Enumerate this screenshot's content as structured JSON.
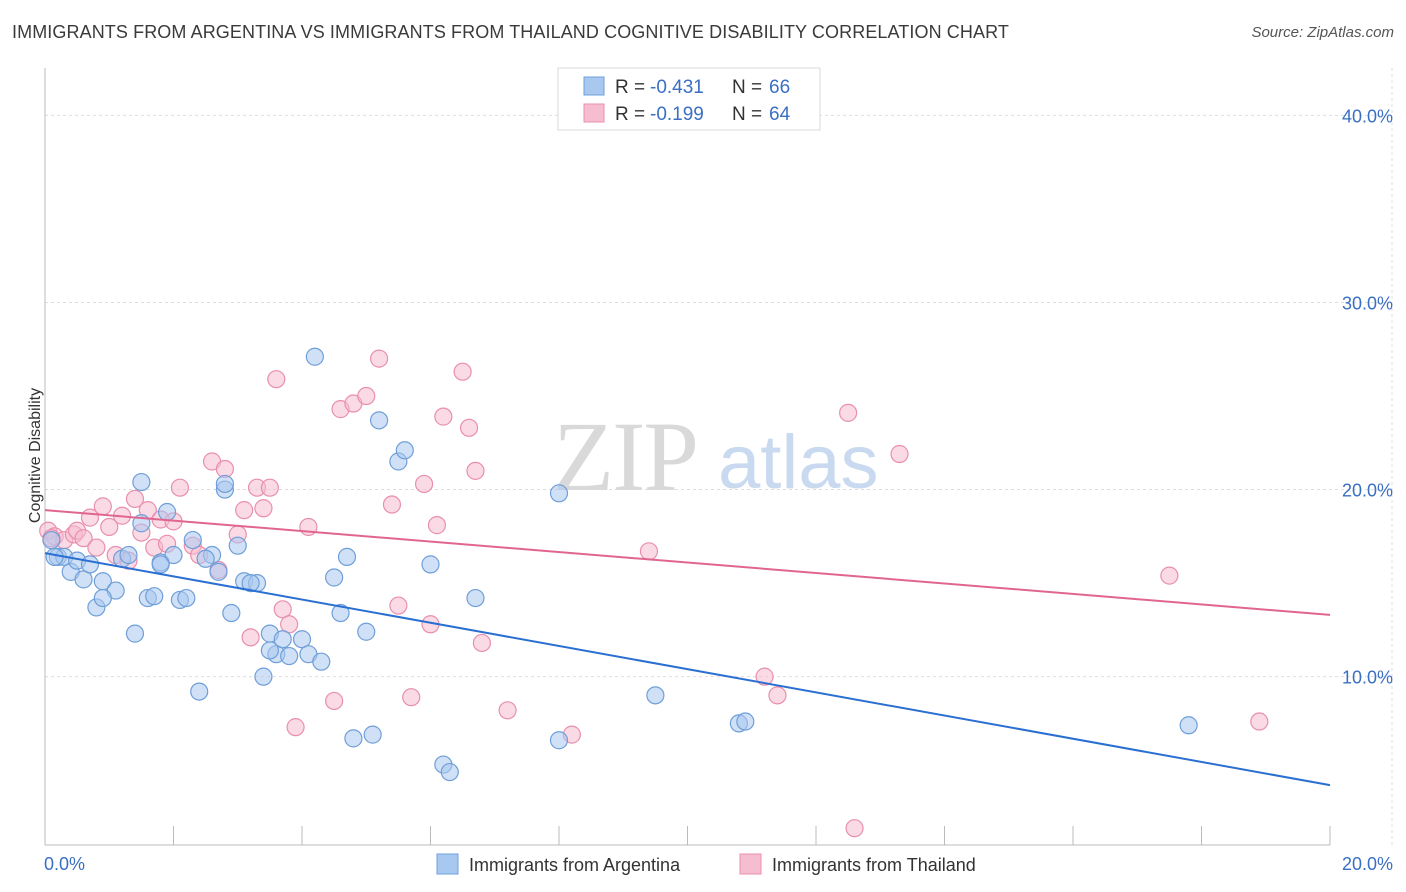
{
  "title": "IMMIGRANTS FROM ARGENTINA VS IMMIGRANTS FROM THAILAND COGNITIVE DISABILITY CORRELATION CHART",
  "source": "Source: ZipAtlas.com",
  "watermark": {
    "zip": "ZIP",
    "atlas": "atlas"
  },
  "colors": {
    "argentina_fill": "#a9c8f0",
    "argentina_stroke": "#6f9fd8",
    "argentina_line": "#2a6fd1",
    "thailand_fill": "#f6bcd0",
    "thailand_stroke": "#e98fae",
    "thailand_line": "#e0668f",
    "axis_label": "#3a6fc4",
    "grid": "#dddddd"
  },
  "legend": {
    "r_label": "R =",
    "n_label": "N =",
    "rows": [
      {
        "r": "-0.431",
        "n": "66"
      },
      {
        "r": "-0.199",
        "n": "64"
      }
    ]
  },
  "chart_data": {
    "type": "scatter",
    "xlabel": "",
    "ylabel": "Cognitive Disability",
    "xlim": [
      0,
      20
    ],
    "ylim": [
      1,
      42
    ],
    "x_tick_labels": [
      "0.0%",
      "20.0%"
    ],
    "y_ticks": [
      10,
      20,
      30,
      40
    ],
    "y_tick_labels": [
      "10.0%",
      "20.0%",
      "30.0%",
      "40.0%"
    ],
    "grid": true,
    "legend_position": "top-center",
    "series": [
      {
        "name": "Immigrants from Argentina",
        "trend": {
          "x": [
            0,
            20
          ],
          "y": [
            16.6,
            4.2
          ]
        },
        "points": [
          [
            0.1,
            17.3
          ],
          [
            0.2,
            16.4
          ],
          [
            0.3,
            16.4
          ],
          [
            0.4,
            15.6
          ],
          [
            0.5,
            16.2
          ],
          [
            0.6,
            15.2
          ],
          [
            0.7,
            16.0
          ],
          [
            0.8,
            13.7
          ],
          [
            0.9,
            15.1
          ],
          [
            1.1,
            14.6
          ],
          [
            1.2,
            16.3
          ],
          [
            1.3,
            16.5
          ],
          [
            1.4,
            12.3
          ],
          [
            1.5,
            18.2
          ],
          [
            1.5,
            20.4
          ],
          [
            1.6,
            14.2
          ],
          [
            1.7,
            14.3
          ],
          [
            1.8,
            16.1
          ],
          [
            1.9,
            18.8
          ],
          [
            2.0,
            16.5
          ],
          [
            2.1,
            14.1
          ],
          [
            2.2,
            14.2
          ],
          [
            2.3,
            17.3
          ],
          [
            2.4,
            9.2
          ],
          [
            2.6,
            16.5
          ],
          [
            2.7,
            15.6
          ],
          [
            2.8,
            20.0
          ],
          [
            2.8,
            20.3
          ],
          [
            2.9,
            13.4
          ],
          [
            3.0,
            17.0
          ],
          [
            3.1,
            15.1
          ],
          [
            3.3,
            15.0
          ],
          [
            3.4,
            10.0
          ],
          [
            3.5,
            12.3
          ],
          [
            3.6,
            11.2
          ],
          [
            3.7,
            12.0
          ],
          [
            3.8,
            11.1
          ],
          [
            4.0,
            12.0
          ],
          [
            4.1,
            11.2
          ],
          [
            4.2,
            27.1
          ],
          [
            4.3,
            10.8
          ],
          [
            4.5,
            15.3
          ],
          [
            4.6,
            13.4
          ],
          [
            4.7,
            16.4
          ],
          [
            4.8,
            6.7
          ],
          [
            5.0,
            12.4
          ],
          [
            5.1,
            6.9
          ],
          [
            5.2,
            23.7
          ],
          [
            5.5,
            21.5
          ],
          [
            5.6,
            22.1
          ],
          [
            6.0,
            16.0
          ],
          [
            6.2,
            5.3
          ],
          [
            6.3,
            4.9
          ],
          [
            6.7,
            14.2
          ],
          [
            8.0,
            19.8
          ],
          [
            8.0,
            6.6
          ],
          [
            9.5,
            9.0
          ],
          [
            10.8,
            7.5
          ],
          [
            10.9,
            7.6
          ],
          [
            17.8,
            7.4
          ],
          [
            0.15,
            16.4
          ],
          [
            0.9,
            14.2
          ],
          [
            1.8,
            16.0
          ],
          [
            2.5,
            16.3
          ],
          [
            3.2,
            15.0
          ],
          [
            3.5,
            11.4
          ]
        ]
      },
      {
        "name": "Immigrants from Thailand",
        "trend": {
          "x": [
            0,
            20
          ],
          "y": [
            18.9,
            13.3
          ]
        },
        "points": [
          [
            0.05,
            17.8
          ],
          [
            0.15,
            17.5
          ],
          [
            0.3,
            17.3
          ],
          [
            0.45,
            17.6
          ],
          [
            0.5,
            17.8
          ],
          [
            0.6,
            17.4
          ],
          [
            0.7,
            18.5
          ],
          [
            0.8,
            16.9
          ],
          [
            0.9,
            19.1
          ],
          [
            1.0,
            18.0
          ],
          [
            1.1,
            16.5
          ],
          [
            1.2,
            18.6
          ],
          [
            1.3,
            16.2
          ],
          [
            1.4,
            19.5
          ],
          [
            1.5,
            17.7
          ],
          [
            1.6,
            18.9
          ],
          [
            1.7,
            16.9
          ],
          [
            1.8,
            18.4
          ],
          [
            1.9,
            17.1
          ],
          [
            2.0,
            18.3
          ],
          [
            2.1,
            20.1
          ],
          [
            2.3,
            17.0
          ],
          [
            2.4,
            16.5
          ],
          [
            2.6,
            21.5
          ],
          [
            2.7,
            15.7
          ],
          [
            2.8,
            21.1
          ],
          [
            3.0,
            17.6
          ],
          [
            3.1,
            18.9
          ],
          [
            3.2,
            12.1
          ],
          [
            3.3,
            20.1
          ],
          [
            3.4,
            19.0
          ],
          [
            3.5,
            20.1
          ],
          [
            3.6,
            25.9
          ],
          [
            3.7,
            13.6
          ],
          [
            3.8,
            12.8
          ],
          [
            3.9,
            7.3
          ],
          [
            4.1,
            18.0
          ],
          [
            4.5,
            8.7
          ],
          [
            4.6,
            24.3
          ],
          [
            4.8,
            24.6
          ],
          [
            5.0,
            25.0
          ],
          [
            5.2,
            27.0
          ],
          [
            5.4,
            19.2
          ],
          [
            5.5,
            13.8
          ],
          [
            5.7,
            8.9
          ],
          [
            5.9,
            20.3
          ],
          [
            6.0,
            12.8
          ],
          [
            6.1,
            18.1
          ],
          [
            6.2,
            23.9
          ],
          [
            6.5,
            26.3
          ],
          [
            6.6,
            23.3
          ],
          [
            6.7,
            21.0
          ],
          [
            6.8,
            11.8
          ],
          [
            7.2,
            8.2
          ],
          [
            8.2,
            6.9
          ],
          [
            9.4,
            16.7
          ],
          [
            11.2,
            10.0
          ],
          [
            11.4,
            9.0
          ],
          [
            12.5,
            24.1
          ],
          [
            12.6,
            1.9
          ],
          [
            13.3,
            21.9
          ],
          [
            17.5,
            15.4
          ],
          [
            18.9,
            7.6
          ],
          [
            0.1,
            17.4
          ]
        ]
      }
    ]
  }
}
